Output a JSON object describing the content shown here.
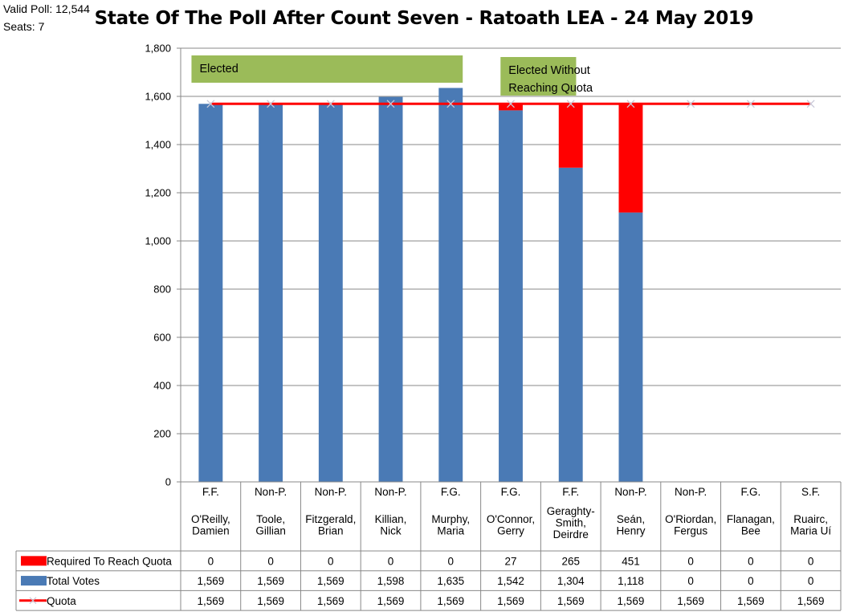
{
  "valid_poll": "Valid Poll: 12,544",
  "seats": "Seats: 7",
  "chart_data": {
    "type": "bar",
    "title": "State Of The Poll After Count Seven - Ratoath LEA - 24 May 2019",
    "stacked": true,
    "ylim": [
      0,
      1800
    ],
    "yticks": [
      0,
      200,
      400,
      600,
      800,
      1000,
      1200,
      1400,
      1600,
      1800
    ],
    "ytick_labels": [
      "0",
      "200",
      "400",
      "600",
      "800",
      "1,000",
      "1,200",
      "1,400",
      "1,600",
      "1,800"
    ],
    "grid": true,
    "categories": [
      {
        "party": "F.F.",
        "name": [
          "O'Reilly,",
          "Damien"
        ]
      },
      {
        "party": "Non-P.",
        "name": [
          "Toole,",
          "Gillian"
        ]
      },
      {
        "party": "Non-P.",
        "name": [
          "Fitzgerald,",
          "Brian"
        ]
      },
      {
        "party": "Non-P.",
        "name": [
          "Killian,",
          "Nick"
        ]
      },
      {
        "party": "F.G.",
        "name": [
          "Murphy,",
          "Maria"
        ]
      },
      {
        "party": "F.G.",
        "name": [
          "O'Connor,",
          "Gerry"
        ]
      },
      {
        "party": "F.F.",
        "name": [
          "Geraghty-",
          "Smith,",
          "Deirdre"
        ]
      },
      {
        "party": "Non-P.",
        "name": [
          "Seán,",
          "Henry"
        ]
      },
      {
        "party": "Non-P.",
        "name": [
          "O'Riordan,",
          "Fergus"
        ]
      },
      {
        "party": "F.G.",
        "name": [
          "Flanagan,",
          "Bee"
        ]
      },
      {
        "party": "S.F.",
        "name": [
          "Ruairc,",
          "Maria Uí"
        ]
      }
    ],
    "series": [
      {
        "name": "Required To Reach Quota",
        "type": "bar",
        "color": "#ff0000",
        "values": [
          0,
          0,
          0,
          0,
          0,
          27,
          265,
          451,
          0,
          0,
          0
        ],
        "labels": [
          "0",
          "0",
          "0",
          "0",
          "0",
          "27",
          "265",
          "451",
          "0",
          "0",
          "0"
        ]
      },
      {
        "name": "Total Votes",
        "type": "bar",
        "color": "#4a7ab5",
        "values": [
          1569,
          1569,
          1569,
          1598,
          1635,
          1542,
          1304,
          1118,
          0,
          0,
          0
        ],
        "labels": [
          "1,569",
          "1,569",
          "1,569",
          "1,598",
          "1,635",
          "1,542",
          "1,304",
          "1,118",
          "0",
          "0",
          "0"
        ]
      },
      {
        "name": "Quota",
        "type": "line",
        "color": "#ff0000",
        "values": [
          1569,
          1569,
          1569,
          1569,
          1569,
          1569,
          1569,
          1569,
          1569,
          1569,
          1569
        ],
        "labels": [
          "1,569",
          "1,569",
          "1,569",
          "1,569",
          "1,569",
          "1,569",
          "1,569",
          "1,569",
          "1,569",
          "1,569",
          "1,569"
        ]
      }
    ],
    "annotations": [
      {
        "text": [
          "Elected"
        ],
        "color": "#9bbb59",
        "from_index": 0,
        "to_index": 4
      },
      {
        "text": [
          "Elected Without",
          "Reaching Quota"
        ],
        "color": "#9bbb59",
        "from_index": 5,
        "to_index": 5
      }
    ]
  }
}
